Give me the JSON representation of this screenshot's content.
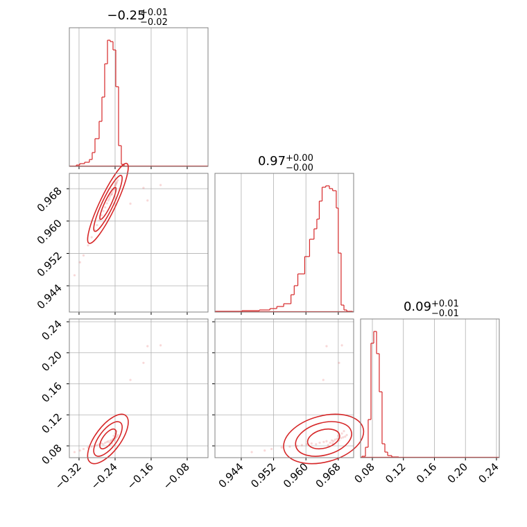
{
  "chart_data": {
    "type": "corner",
    "color": "#d62728",
    "grid": true,
    "hist_ylim": [
      0,
      200
    ],
    "params": [
      {
        "title": {
          "value": "−0.25",
          "plus": "+0.01",
          "minus": "−0.02"
        },
        "lim": [
          -0.3415,
          -0.0338
        ],
        "ticks": [
          {
            "value": -0.32,
            "label": "−0.32"
          },
          {
            "value": -0.24,
            "label": "−0.24"
          },
          {
            "value": -0.16,
            "label": "−0.16"
          },
          {
            "value": -0.08,
            "label": "−0.08"
          }
        ],
        "bins": [
          -0.326,
          -0.3185,
          -0.3077,
          -0.297,
          -0.2908,
          -0.2846,
          -0.2754,
          -0.2692,
          -0.2631,
          -0.2569,
          -0.2508,
          -0.2446,
          -0.2385,
          -0.2323,
          -0.2262,
          -0.22
        ],
        "counts": [
          2,
          4,
          6,
          10,
          20,
          40,
          65,
          100,
          148,
          182,
          180,
          168,
          115,
          30,
          3
        ]
      },
      {
        "title": {
          "value": "0.97",
          "plus": "+0.00",
          "minus": "−0.00"
        },
        "lim": [
          0.9375,
          0.9718
        ],
        "ticks": [
          0.944,
          0.952,
          {
            "value": 0.96,
            "label": "0.960"
          },
          0.968
        ],
        "bins": [
          0.9376,
          0.9442,
          0.9485,
          0.9511,
          0.9528,
          0.9545,
          0.9563,
          0.9571,
          0.958,
          0.9597,
          0.9609,
          0.962,
          0.9627,
          0.9633,
          0.964,
          0.9649,
          0.9658,
          0.9666,
          0.9675,
          0.968,
          0.9687,
          0.9694,
          0.9701,
          0.9715
        ],
        "counts": [
          1,
          2,
          3,
          5,
          8,
          12,
          25,
          38,
          55,
          80,
          105,
          120,
          134,
          160,
          180,
          182,
          178,
          175,
          150,
          85,
          10,
          3,
          1
        ]
      },
      {
        "title": {
          "value": "0.09",
          "plus": "+0.01",
          "minus": "−0.01"
        },
        "lim": [
          0.0648,
          0.2436
        ],
        "ticks": [
          0.08,
          0.12,
          0.16,
          {
            "value": 0.2,
            "label": "0.20"
          },
          0.24
        ],
        "bins": [
          0.0666,
          0.0711,
          0.0746,
          0.0782,
          0.0818,
          0.0854,
          0.0889,
          0.0925,
          0.0961,
          0.0997,
          0.105,
          0.114
        ],
        "counts": [
          2,
          15,
          55,
          165,
          182,
          150,
          95,
          20,
          8,
          3,
          1
        ]
      }
    ],
    "samples": [
      [
        -0.33,
        0.9466,
        0.072
      ],
      [
        -0.318,
        0.9498,
        0.074
      ],
      [
        -0.31,
        0.9515,
        0.076
      ],
      [
        -0.3,
        0.954,
        0.078
      ],
      [
        -0.292,
        0.956,
        0.079
      ],
      [
        -0.285,
        0.9578,
        0.08
      ],
      [
        -0.28,
        0.959,
        0.081
      ],
      [
        -0.275,
        0.9602,
        0.082
      ],
      [
        -0.27,
        0.9614,
        0.083
      ],
      [
        -0.266,
        0.9625,
        0.082
      ],
      [
        -0.262,
        0.9634,
        0.084
      ],
      [
        -0.258,
        0.9644,
        0.085
      ],
      [
        -0.255,
        0.9651,
        0.086
      ],
      [
        -0.252,
        0.966,
        0.084
      ],
      [
        -0.25,
        0.9664,
        0.087
      ],
      [
        -0.248,
        0.9668,
        0.086
      ],
      [
        -0.246,
        0.9672,
        0.088
      ],
      [
        -0.244,
        0.9677,
        0.089
      ],
      [
        -0.242,
        0.9682,
        0.087
      ],
      [
        -0.24,
        0.9687,
        0.09
      ],
      [
        -0.238,
        0.9692,
        0.091
      ],
      [
        -0.236,
        0.9697,
        0.092
      ],
      [
        -0.234,
        0.9701,
        0.094
      ],
      [
        -0.247,
        0.9666,
        0.083
      ],
      [
        -0.253,
        0.9655,
        0.081
      ],
      [
        -0.243,
        0.968,
        0.093
      ],
      [
        -0.239,
        0.9689,
        0.096
      ],
      [
        -0.237,
        0.9694,
        0.099
      ],
      [
        -0.168,
        0.9651,
        0.2085
      ],
      [
        -0.139,
        0.9689,
        0.2096
      ],
      [
        -0.177,
        0.9682,
        0.187
      ],
      [
        -0.206,
        0.9643,
        0.165
      ]
    ]
  }
}
